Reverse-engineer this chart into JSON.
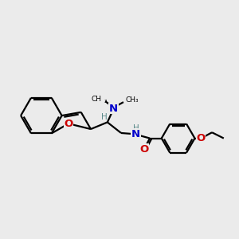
{
  "bg_color": "#ebebeb",
  "bond_color": "#000000",
  "n_color": "#0000cc",
  "o_color": "#cc0000",
  "h_color": "#5a8a8a",
  "font_size": 8.5,
  "bond_width": 1.6,
  "fig_width": 3.0,
  "fig_height": 3.0,
  "dpi": 100,
  "xlim": [
    0,
    12
  ],
  "ylim": [
    0,
    10
  ]
}
